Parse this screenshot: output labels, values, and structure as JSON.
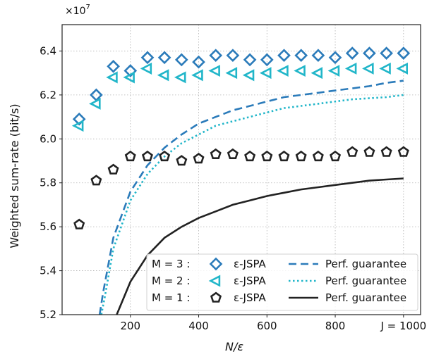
{
  "chart_data": {
    "type": "scatter",
    "title": "",
    "xlabel": "N/ε",
    "ylabel": "Weighted sum-rate (bit/s)",
    "y_multiplier": "×10^7",
    "xlim": [
      0,
      1050
    ],
    "ylim": [
      5.2,
      6.52
    ],
    "x_ticks": [
      200,
      400,
      600,
      800,
      1000
    ],
    "x_tick_labels": [
      "200",
      "400",
      "600",
      "800",
      "J = 1000"
    ],
    "y_ticks": [
      5.2,
      5.4,
      5.6,
      5.8,
      6.0,
      6.2,
      6.4
    ],
    "y_tick_labels": [
      "5.2",
      "5.4",
      "5.6",
      "5.8",
      "6.0",
      "6.2",
      "6.4"
    ],
    "grid": true,
    "legend_position": "bottom-right",
    "series": [
      {
        "name": "ε-JSPA",
        "group_label": "M = 3 :",
        "kind": "markers",
        "marker": "diamond",
        "color": "#2b7bba",
        "x": [
          50,
          100,
          150,
          200,
          250,
          300,
          350,
          400,
          450,
          500,
          550,
          600,
          650,
          700,
          750,
          800,
          850,
          900,
          950,
          1000
        ],
        "y": [
          6.09,
          6.2,
          6.33,
          6.31,
          6.37,
          6.37,
          6.36,
          6.35,
          6.38,
          6.38,
          6.36,
          6.36,
          6.38,
          6.38,
          6.38,
          6.37,
          6.39,
          6.39,
          6.39,
          6.39
        ]
      },
      {
        "name": "ε-JSPA",
        "group_label": "M = 2 :",
        "kind": "markers",
        "marker": "triangle-left",
        "color": "#21b6c9",
        "x": [
          50,
          100,
          150,
          200,
          250,
          300,
          350,
          400,
          450,
          500,
          550,
          600,
          650,
          700,
          750,
          800,
          850,
          900,
          950,
          1000
        ],
        "y": [
          6.06,
          6.16,
          6.28,
          6.28,
          6.32,
          6.29,
          6.28,
          6.29,
          6.31,
          6.3,
          6.29,
          6.3,
          6.31,
          6.31,
          6.3,
          6.31,
          6.32,
          6.32,
          6.32,
          6.32
        ]
      },
      {
        "name": "ε-JSPA",
        "group_label": "M = 1 :",
        "kind": "markers",
        "marker": "pentagon",
        "color": "#222222",
        "x": [
          50,
          100,
          150,
          200,
          250,
          300,
          350,
          400,
          450,
          500,
          550,
          600,
          650,
          700,
          750,
          800,
          850,
          900,
          950,
          1000
        ],
        "y": [
          5.61,
          5.81,
          5.86,
          5.92,
          5.92,
          5.92,
          5.9,
          5.91,
          5.93,
          5.93,
          5.92,
          5.92,
          5.92,
          5.92,
          5.92,
          5.92,
          5.94,
          5.94,
          5.94,
          5.94
        ]
      },
      {
        "name": "Perf. guarantee",
        "group_label": "M = 3 :",
        "kind": "line",
        "dash": "dashed",
        "color": "#2b7bba",
        "x": [
          110,
          120,
          150,
          200,
          250,
          300,
          350,
          400,
          450,
          500,
          550,
          600,
          650,
          700,
          750,
          800,
          850,
          900,
          950,
          1000
        ],
        "y": [
          5.2,
          5.3,
          5.55,
          5.76,
          5.88,
          5.96,
          6.02,
          6.07,
          6.1,
          6.13,
          6.15,
          6.17,
          6.19,
          6.2,
          6.21,
          6.22,
          6.23,
          6.24,
          6.255,
          6.265
        ]
      },
      {
        "name": "Perf. guarantee",
        "group_label": "M = 2 :",
        "kind": "line",
        "dash": "dotted",
        "color": "#21b6c9",
        "x": [
          115,
          125,
          150,
          200,
          250,
          300,
          350,
          400,
          450,
          500,
          550,
          600,
          650,
          700,
          750,
          800,
          850,
          900,
          950,
          1000
        ],
        "y": [
          5.2,
          5.28,
          5.5,
          5.72,
          5.84,
          5.92,
          5.98,
          6.02,
          6.06,
          6.08,
          6.1,
          6.12,
          6.14,
          6.15,
          6.16,
          6.17,
          6.18,
          6.185,
          6.19,
          6.2
        ]
      },
      {
        "name": "Perf. guarantee",
        "group_label": "M = 1 :",
        "kind": "line",
        "dash": "solid",
        "color": "#222222",
        "x": [
          160,
          200,
          250,
          300,
          350,
          400,
          450,
          500,
          550,
          600,
          650,
          700,
          750,
          800,
          850,
          900,
          950,
          1000
        ],
        "y": [
          5.2,
          5.35,
          5.47,
          5.55,
          5.6,
          5.64,
          5.67,
          5.7,
          5.72,
          5.74,
          5.755,
          5.77,
          5.78,
          5.79,
          5.8,
          5.81,
          5.815,
          5.82
        ]
      }
    ]
  }
}
